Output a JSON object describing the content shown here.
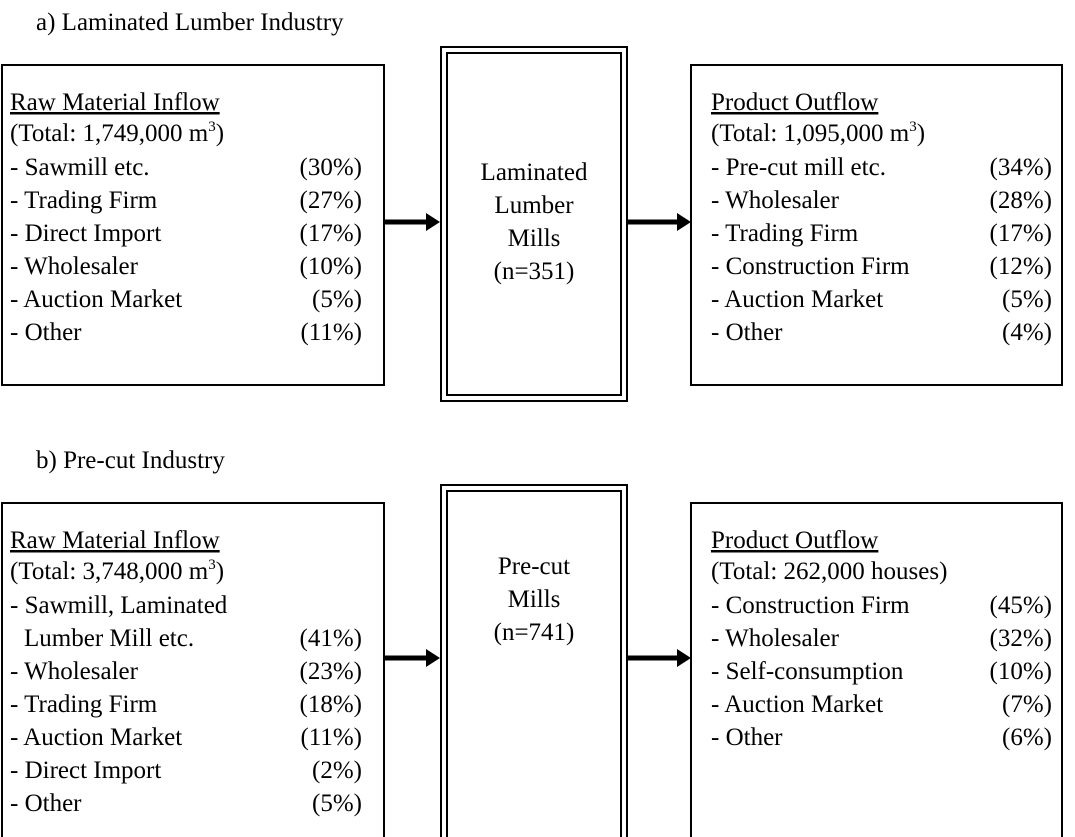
{
  "sections": [
    {
      "title": "a) Laminated Lumber Industry",
      "inflow": {
        "heading": "Raw Material Inflow",
        "total": {
          "text": "(Total: 1,749,000 m",
          "sup": "3",
          "end": ")"
        },
        "items": [
          {
            "lines": [
              "- Sawmill etc."
            ],
            "share": "(30%)"
          },
          {
            "lines": [
              "- Trading Firm"
            ],
            "share": "(27%)"
          },
          {
            "lines": [
              "- Direct Import"
            ],
            "share": "(17%)"
          },
          {
            "lines": [
              "- Wholesaler"
            ],
            "share": "(10%)"
          },
          {
            "lines": [
              "- Auction Market"
            ],
            "share": "(5%)"
          },
          {
            "lines": [
              "- Other"
            ],
            "share": "(11%)"
          }
        ]
      },
      "mill": {
        "lines": [
          "Laminated",
          "Lumber",
          "Mills",
          "(n=351)"
        ]
      },
      "outflow": {
        "heading": "Product Outflow",
        "total": {
          "text": "(Total: 1,095,000 m",
          "sup": "3",
          "end": ")"
        },
        "items": [
          {
            "lines": [
              "- Pre-cut mill etc."
            ],
            "share": "(34%)"
          },
          {
            "lines": [
              "- Wholesaler"
            ],
            "share": "(28%)"
          },
          {
            "lines": [
              "- Trading Firm"
            ],
            "share": "(17%)"
          },
          {
            "lines": [
              "- Construction Firm"
            ],
            "share": "(12%)"
          },
          {
            "lines": [
              "- Auction Market"
            ],
            "share": "(5%)"
          },
          {
            "lines": [
              "- Other"
            ],
            "share": "(4%)"
          }
        ]
      }
    },
    {
      "title": "b) Pre-cut Industry",
      "inflow": {
        "heading": "Raw Material Inflow",
        "total": {
          "text": "(Total: 3,748,000 m",
          "sup": "3",
          "end": ")"
        },
        "items": [
          {
            "lines": [
              "- Sawmill, Laminated",
              "Lumber Mill etc."
            ],
            "share": "(41%)"
          },
          {
            "lines": [
              "- Wholesaler"
            ],
            "share": "(23%)"
          },
          {
            "lines": [
              "- Trading Firm"
            ],
            "share": "(18%)"
          },
          {
            "lines": [
              "- Auction Market"
            ],
            "share": "(11%)"
          },
          {
            "lines": [
              "- Direct Import"
            ],
            "share": "(2%)"
          },
          {
            "lines": [
              "- Other"
            ],
            "share": "(5%)"
          }
        ]
      },
      "mill": {
        "lines": [
          "Pre-cut",
          "Mills",
          "(n=741)"
        ]
      },
      "outflow": {
        "heading": "Product Outflow",
        "total": {
          "text": "(Total: 262,000 houses)"
        },
        "items": [
          {
            "lines": [
              "- Construction Firm"
            ],
            "share": "(45%)"
          },
          {
            "lines": [
              "- Wholesaler"
            ],
            "share": "(32%)"
          },
          {
            "lines": [
              "- Self-consumption"
            ],
            "share": "(10%)"
          },
          {
            "lines": [
              "- Auction Market"
            ],
            "share": "(7%)"
          },
          {
            "lines": [
              "- Other"
            ],
            "share": "(6%)"
          }
        ]
      }
    }
  ]
}
